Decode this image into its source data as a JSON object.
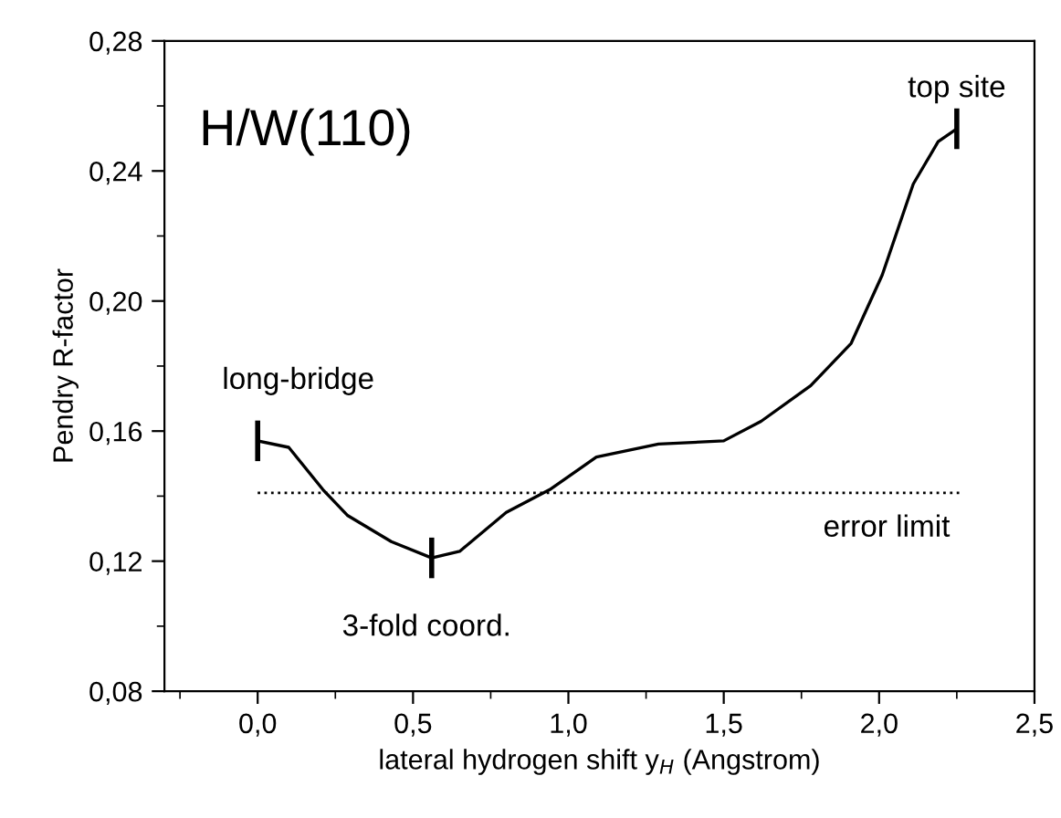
{
  "chart_data": {
    "type": "line",
    "xlabel": "lateral hydrogen shift y$_{H}$ (Angstrom)",
    "ylabel": "Pendry R-factor",
    "xlim": [
      -0.3,
      2.5
    ],
    "ylim": [
      0.08,
      0.28
    ],
    "xticks": [
      {
        "value": 0.0,
        "label": "0,0"
      },
      {
        "value": 0.5,
        "label": "0,5"
      },
      {
        "value": 1.0,
        "label": "1,0"
      },
      {
        "value": 1.5,
        "label": "1,5"
      },
      {
        "value": 2.0,
        "label": "2,0"
      },
      {
        "value": 2.5,
        "label": "2,5"
      }
    ],
    "yticks": [
      {
        "value": 0.08,
        "label": "0,08"
      },
      {
        "value": 0.12,
        "label": "0,12"
      },
      {
        "value": 0.16,
        "label": "0,16"
      },
      {
        "value": 0.2,
        "label": "0,20"
      },
      {
        "value": 0.24,
        "label": "0,24"
      },
      {
        "value": 0.28,
        "label": "0,28"
      }
    ],
    "grid": false,
    "legend": false,
    "marker": "none",
    "series": [
      {
        "color": "#000000",
        "line_style": "solid",
        "x": [
          0.0,
          0.1,
          0.21,
          0.29,
          0.43,
          0.56,
          0.65,
          0.8,
          0.94,
          1.09,
          1.29,
          1.5,
          1.62,
          1.78,
          1.91,
          2.01,
          2.11,
          2.19,
          2.25
        ],
        "values": [
          0.157,
          0.155,
          0.142,
          0.134,
          0.126,
          0.121,
          0.123,
          0.135,
          0.142,
          0.152,
          0.156,
          0.157,
          0.163,
          0.174,
          0.187,
          0.208,
          0.236,
          0.249,
          0.253
        ]
      },
      {
        "type": "line",
        "color": "#000000",
        "line_style": "dotted",
        "x": [
          0.0,
          2.26
        ],
        "values": [
          0.141,
          0.141
        ]
      }
    ],
    "annotations": [
      "H/W(110)",
      {
        "text": "long-bridge",
        "x": 0.0,
        "y": 0.157
      },
      {
        "text": "3-fold coord.",
        "x": 0.56,
        "y": 0.121
      },
      {
        "text": "top site",
        "x": 2.25,
        "y": 0.253
      },
      "error limit"
    ]
  }
}
